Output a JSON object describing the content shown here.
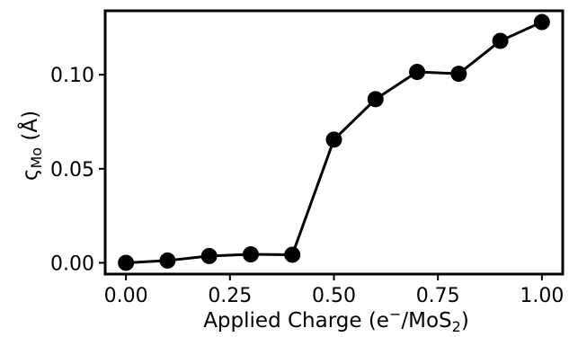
{
  "chart_data": {
    "type": "line",
    "xlabel": {
      "main": "Applied Charge (e",
      "sup": "−",
      "mid": "/MoS",
      "sub": "2",
      "end": ")"
    },
    "ylabel": {
      "main": "ς",
      "sub": "Mo",
      "end": " (Å)"
    },
    "xlim": [
      -0.05,
      1.05
    ],
    "ylim": [
      -0.006,
      0.134
    ],
    "x_ticks": [
      "0.00",
      "0.25",
      "0.50",
      "0.75",
      "1.00"
    ],
    "y_ticks": [
      "0.00",
      "0.05",
      "0.10"
    ],
    "grid": false,
    "series": [
      {
        "x": [
          0.0,
          0.1,
          0.2,
          0.3,
          0.4,
          0.5,
          0.6,
          0.7,
          0.8,
          0.9,
          1.0
        ],
        "y": [
          0.0,
          0.0012,
          0.0036,
          0.0045,
          0.0043,
          0.0655,
          0.087,
          0.1015,
          0.1005,
          0.118,
          0.128
        ],
        "color": "#000000",
        "marker": "circle"
      }
    ]
  }
}
